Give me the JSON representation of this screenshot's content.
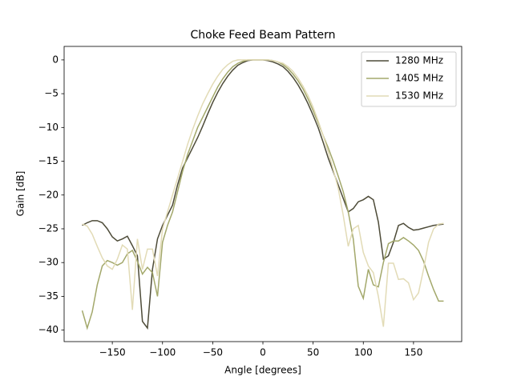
{
  "chart_data": {
    "type": "line",
    "title": "Choke Feed Beam Pattern",
    "x_label": "Angle [degrees]",
    "y_label": "Gain [dB]",
    "x": [
      -180,
      -175,
      -170,
      -165,
      -160,
      -155,
      -150,
      -145,
      -140,
      -135,
      -130,
      -125,
      -120,
      -115,
      -110,
      -105,
      -100,
      -95,
      -90,
      -85,
      -80,
      -75,
      -70,
      -65,
      -60,
      -55,
      -50,
      -45,
      -40,
      -35,
      -30,
      -25,
      -20,
      -15,
      -10,
      -5,
      0,
      5,
      10,
      15,
      20,
      25,
      30,
      35,
      40,
      45,
      50,
      55,
      60,
      65,
      70,
      75,
      80,
      85,
      90,
      95,
      100,
      105,
      110,
      115,
      120,
      125,
      130,
      135,
      140,
      145,
      150,
      155,
      160,
      165,
      170,
      175,
      180
    ],
    "series": [
      {
        "name": "1280 MHz",
        "color": "#4d4b38",
        "values": [
          -24.5,
          -24.1,
          -23.8,
          -23.8,
          -24.1,
          -25.0,
          -26.2,
          -26.8,
          -26.5,
          -26.1,
          -27.5,
          -29.0,
          -38.7,
          -39.7,
          -31.0,
          -26.5,
          -24.5,
          -23.0,
          -21.5,
          -18.5,
          -16.0,
          -14.5,
          -13.0,
          -11.5,
          -9.8,
          -8.0,
          -6.3,
          -4.8,
          -3.5,
          -2.4,
          -1.5,
          -0.8,
          -0.4,
          -0.1,
          0,
          0,
          0,
          -0.1,
          -0.3,
          -0.6,
          -1.0,
          -1.7,
          -2.6,
          -3.7,
          -5.0,
          -6.5,
          -8.2,
          -10.0,
          -12.2,
          -14.5,
          -16.5,
          -18.5,
          -20.5,
          -22.5,
          -22.0,
          -21.0,
          -20.7,
          -20.2,
          -20.7,
          -24.0,
          -29.5,
          -29.0,
          -27.0,
          -24.5,
          -24.2,
          -24.8,
          -25.2,
          -25.1,
          -24.9,
          -24.7,
          -24.5,
          -24.4,
          -24.3
        ]
      },
      {
        "name": "1405 MHz",
        "color": "#a3a86b",
        "values": [
          -37.1,
          -39.7,
          -37.3,
          -33.3,
          -30.5,
          -29.7,
          -30.0,
          -30.4,
          -30.0,
          -28.7,
          -28.2,
          -29.8,
          -31.7,
          -30.7,
          -31.5,
          -35.0,
          -27.0,
          -24.5,
          -22.5,
          -19.5,
          -16.5,
          -14.0,
          -12.0,
          -10.0,
          -8.5,
          -7.0,
          -5.5,
          -4.0,
          -2.8,
          -1.8,
          -1.0,
          -0.5,
          -0.2,
          0,
          0,
          0,
          0,
          0,
          -0.1,
          -0.3,
          -0.7,
          -1.3,
          -2.1,
          -3.1,
          -4.3,
          -5.8,
          -7.5,
          -9.3,
          -11.2,
          -13.0,
          -15.0,
          -17.2,
          -19.5,
          -22.5,
          -26.5,
          -33.5,
          -35.3,
          -31.0,
          -33.3,
          -33.6,
          -30.0,
          -27.2,
          -26.8,
          -26.8,
          -26.3,
          -26.8,
          -27.4,
          -28.2,
          -29.8,
          -32.0,
          -34.0,
          -35.7,
          -35.7
        ]
      },
      {
        "name": "1530 MHz",
        "color": "#e2dbb6",
        "values": [
          -24.3,
          -24.6,
          -25.8,
          -27.6,
          -29.3,
          -30.5,
          -31.0,
          -29.5,
          -27.4,
          -28.0,
          -37.0,
          -26.5,
          -31.0,
          -28.0,
          -28.0,
          -32.0,
          -25.0,
          -22.5,
          -20.0,
          -17.5,
          -15.0,
          -12.5,
          -10.3,
          -8.3,
          -6.5,
          -5.0,
          -3.6,
          -2.4,
          -1.4,
          -0.7,
          -0.2,
          0,
          0,
          0,
          0,
          0,
          0,
          0,
          -0.1,
          -0.3,
          -0.5,
          -1.0,
          -1.7,
          -2.7,
          -3.9,
          -5.3,
          -7.0,
          -9.0,
          -11.2,
          -13.6,
          -16.2,
          -19.0,
          -23.0,
          -27.6,
          -25.0,
          -24.5,
          -28.5,
          -30.5,
          -31.5,
          -35.0,
          -39.5,
          -30.1,
          -30.1,
          -32.5,
          -32.4,
          -33.0,
          -35.5,
          -34.5,
          -31.0,
          -27.0,
          -25.0,
          -24.3,
          -24.2
        ]
      }
    ],
    "xlim": [
      -198,
      198
    ],
    "ylim": [
      -41.7,
      2
    ],
    "xticks": [
      {
        "value": -150,
        "label": "−150"
      },
      {
        "value": -100,
        "label": "−100"
      },
      {
        "value": -50,
        "label": "−50"
      },
      0,
      50,
      100,
      150
    ],
    "yticks": [
      0,
      {
        "value": -5,
        "label": "−5"
      },
      {
        "value": -10,
        "label": "−10"
      },
      {
        "value": -15,
        "label": "−15"
      },
      {
        "value": -20,
        "label": "−20"
      },
      {
        "value": -25,
        "label": "−25"
      },
      {
        "value": -30,
        "label": "−30"
      },
      {
        "value": -35,
        "label": "−35"
      },
      {
        "value": -40,
        "label": "−40"
      }
    ],
    "grid": false,
    "legend": "upper right"
  }
}
